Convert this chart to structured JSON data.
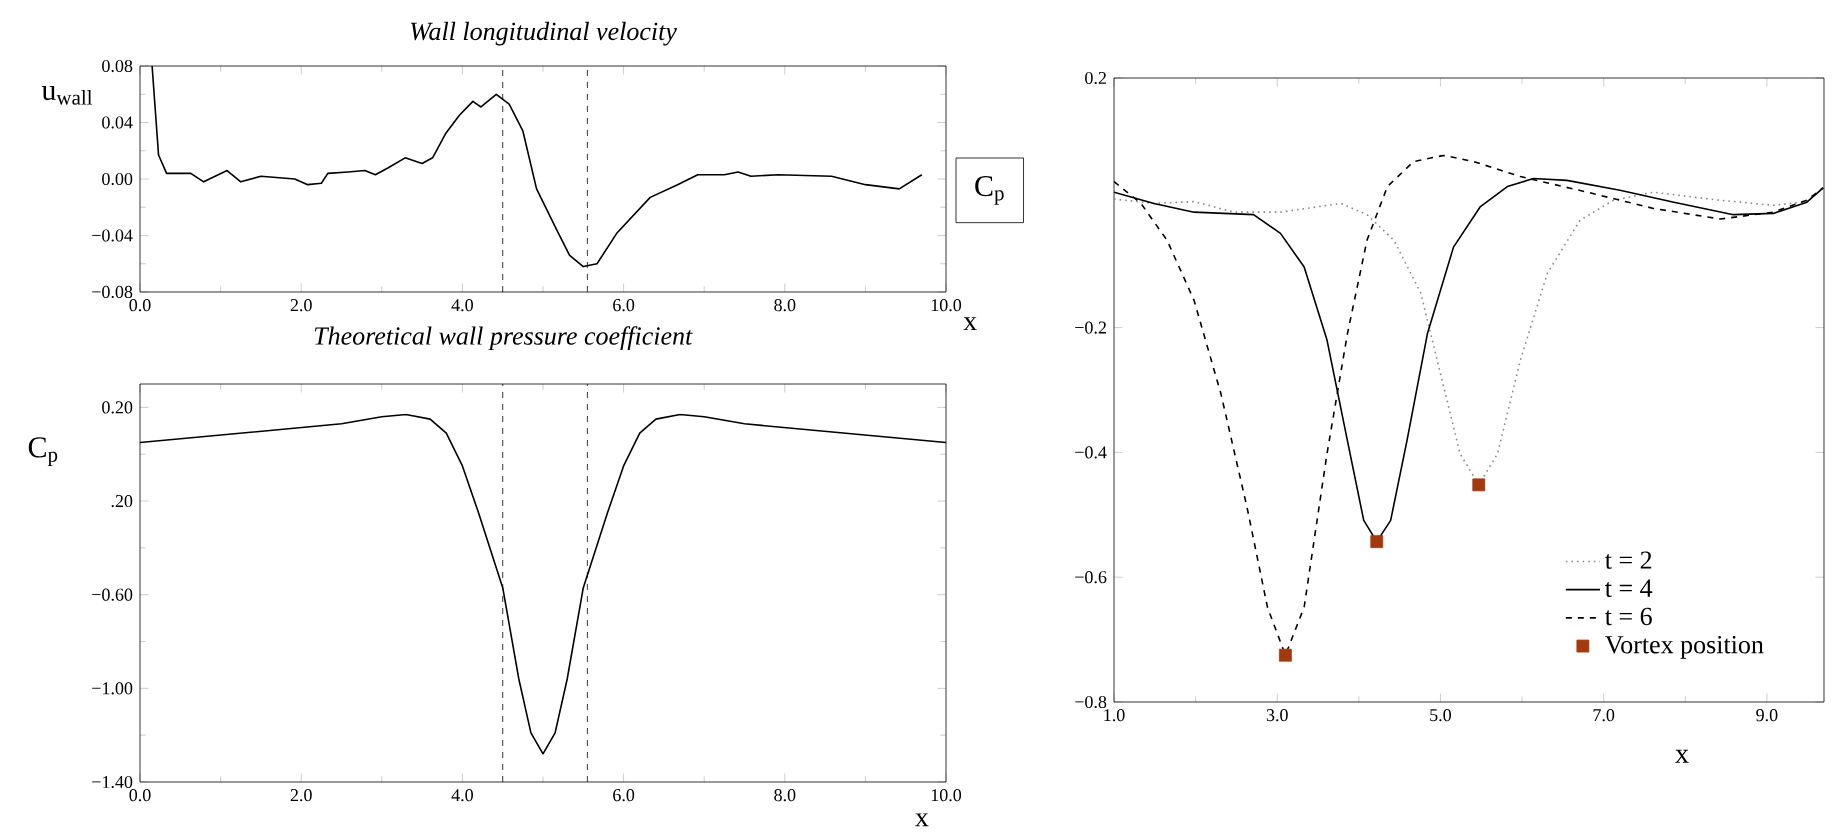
{
  "chart_data": [
    {
      "type": "line",
      "title": "Wall longitudinal velocity",
      "xlabel": "x",
      "ylabel": "u$_{wall}$",
      "color": "#000000",
      "line_style": "solid",
      "x": [
        0.15,
        0.23,
        0.33,
        0.63,
        0.79,
        1.08,
        1.25,
        1.5,
        1.92,
        2.08,
        2.25,
        2.33,
        2.58,
        2.79,
        2.92,
        3.08,
        3.29,
        3.5,
        3.63,
        3.79,
        3.96,
        4.13,
        4.23,
        4.42,
        4.58,
        4.75,
        4.92,
        5.17,
        5.33,
        5.5,
        5.67,
        5.92,
        6.33,
        6.67,
        6.92,
        7.25,
        7.42,
        7.58,
        7.92,
        8.58,
        9.0,
        9.42,
        9.7
      ],
      "values": [
        0.08,
        0.017,
        0.004,
        0.004,
        -0.002,
        0.006,
        -0.002,
        0.002,
        0.0,
        -0.004,
        -0.003,
        0.004,
        0.005,
        0.006,
        0.003,
        0.008,
        0.015,
        0.011,
        0.015,
        0.032,
        0.045,
        0.055,
        0.051,
        0.06,
        0.053,
        0.034,
        -0.007,
        -0.036,
        -0.054,
        -0.062,
        -0.06,
        -0.038,
        -0.013,
        -0.004,
        0.003,
        0.003,
        0.005,
        0.002,
        0.003,
        0.002,
        -0.004,
        -0.007,
        0.003
      ],
      "xlim": [
        0,
        10
      ],
      "ylim": [
        -0.08,
        0.08
      ],
      "xticks": [
        {
          "value": 0,
          "label": "0.0"
        },
        {
          "value": 2,
          "label": "2.0"
        },
        {
          "value": 4,
          "label": "4.0"
        },
        {
          "value": 6,
          "label": "6.0"
        },
        {
          "value": 8,
          "label": "8.0"
        },
        {
          "value": 10,
          "label": "10.0"
        }
      ],
      "yticks": [
        {
          "value": -0.08,
          "label": "−0.08"
        },
        {
          "value": -0.04,
          "label": "−0.04"
        },
        {
          "value": 0,
          "label": "0.00"
        },
        {
          "value": 0.04,
          "label": "0.04"
        },
        {
          "value": 0.08,
          "label": "0.08"
        }
      ],
      "ref_lines": [
        {
          "axis": "x",
          "value": 4.5,
          "line_style": "dashed",
          "color": "#000000"
        },
        {
          "axis": "x",
          "value": 5.55,
          "line_style": "dashed",
          "color": "#000000"
        }
      ]
    },
    {
      "type": "line",
      "title": "Theoretical wall pressure coefficient",
      "xlabel": "x",
      "ylabel": "C$_{p}$",
      "color": "#000000",
      "line_style": "solid",
      "x": [
        0,
        2.5,
        3.0,
        3.3,
        3.6,
        3.8,
        4.0,
        4.2,
        4.5,
        4.7,
        4.85,
        5.0,
        5.15,
        5.3,
        5.5,
        5.8,
        6.0,
        6.2,
        6.4,
        6.7,
        7.0,
        7.5,
        10.0
      ],
      "values": [
        0.05,
        0.13,
        0.16,
        0.17,
        0.15,
        0.09,
        -0.05,
        -0.25,
        -0.57,
        -0.96,
        -1.19,
        -1.28,
        -1.19,
        -0.96,
        -0.57,
        -0.25,
        -0.05,
        0.09,
        0.15,
        0.17,
        0.16,
        0.13,
        0.05
      ],
      "xlim": [
        0,
        10
      ],
      "ylim": [
        -1.4,
        0.3
      ],
      "xticks": [
        {
          "value": 0,
          "label": "0.0"
        },
        {
          "value": 2,
          "label": "2.0"
        },
        {
          "value": 4,
          "label": "4.0"
        },
        {
          "value": 6,
          "label": "6.0"
        },
        {
          "value": 8,
          "label": "8.0"
        },
        {
          "value": 10,
          "label": "10.0"
        }
      ],
      "yticks": [
        {
          "value": -1.4,
          "label": "−1.40"
        },
        {
          "value": -1.0,
          "label": "−1.00"
        },
        {
          "value": -0.6,
          "label": "−0.60"
        },
        {
          "value": -0.2,
          "label": ".20"
        },
        {
          "value": 0.2,
          "label": "0.20"
        }
      ],
      "ref_lines": [
        {
          "axis": "x",
          "value": 4.5,
          "line_style": "dashed",
          "color": "#000000"
        },
        {
          "axis": "x",
          "value": 5.55,
          "line_style": "dashed",
          "color": "#000000"
        }
      ]
    },
    {
      "type": "line",
      "xlabel": "x",
      "ylabel": "C$_{p}$",
      "legend": "bottom right",
      "xlim": [
        1.0,
        9.7
      ],
      "ylim": [
        -0.8,
        0.2
      ],
      "xticks": [
        {
          "value": 1,
          "label": "1.0"
        },
        {
          "value": 3,
          "label": "3.0"
        },
        {
          "value": 5,
          "label": "5.0"
        },
        {
          "value": 7,
          "label": "7.0"
        },
        {
          "value": 9,
          "label": "9.0"
        }
      ],
      "yticks": [
        {
          "value": -0.8,
          "label": "−0.8"
        },
        {
          "value": -0.6,
          "label": "−0.6"
        },
        {
          "value": -0.4,
          "label": "−0.4"
        },
        {
          "value": -0.2,
          "label": "−0.2"
        },
        0.2
      ],
      "series": [
        {
          "name": "t = 2",
          "type": "line",
          "color": "#888888",
          "line_style": "dotted",
          "x": [
            1.0,
            1.49,
            1.98,
            2.47,
            3.04,
            3.78,
            4.1,
            4.43,
            4.76,
            5.0,
            5.24,
            5.47,
            5.7,
            5.98,
            6.31,
            6.71,
            7.12,
            7.61,
            8.43,
            9.08,
            9.49,
            9.69
          ],
          "values": [
            0.006,
            -0.001,
            0.002,
            -0.015,
            -0.015,
            -0.001,
            -0.019,
            -0.06,
            -0.145,
            -0.274,
            -0.402,
            -0.452,
            -0.402,
            -0.252,
            -0.113,
            -0.028,
            0.004,
            0.017,
            0.004,
            -0.004,
            0.002,
            0.024
          ]
        },
        {
          "name": "t = 4",
          "type": "line",
          "color": "#000000",
          "line_style": "solid",
          "x": [
            1.0,
            1.49,
            1.98,
            2.71,
            3.04,
            3.33,
            3.61,
            3.86,
            4.06,
            4.22,
            4.39,
            4.59,
            4.84,
            5.16,
            5.49,
            5.82,
            6.14,
            6.55,
            7.2,
            7.86,
            8.59,
            9.08,
            9.49,
            9.69
          ],
          "values": [
            0.017,
            -0.001,
            -0.015,
            -0.019,
            -0.049,
            -0.103,
            -0.22,
            -0.381,
            -0.509,
            -0.543,
            -0.509,
            -0.381,
            -0.21,
            -0.071,
            -0.006,
            0.026,
            0.039,
            0.036,
            0.02,
            0.001,
            -0.019,
            -0.017,
            0.001,
            0.024
          ]
        },
        {
          "name": "t = 6",
          "type": "line",
          "color": "#000000",
          "line_style": "dashed",
          "x": [
            1.0,
            1.33,
            1.65,
            1.98,
            2.31,
            2.63,
            2.88,
            3.1,
            3.33,
            3.61,
            3.86,
            4.1,
            4.35,
            4.67,
            5.04,
            5.41,
            5.98,
            6.8,
            7.61,
            8.43,
            9.08,
            9.49,
            9.69
          ],
          "values": [
            0.034,
            -0.001,
            -0.06,
            -0.156,
            -0.306,
            -0.488,
            -0.648,
            -0.725,
            -0.648,
            -0.402,
            -0.21,
            -0.06,
            0.026,
            0.066,
            0.076,
            0.066,
            0.042,
            0.017,
            -0.009,
            -0.026,
            -0.015,
            0.004,
            0.024
          ]
        },
        {
          "name": "Vortex position",
          "type": "scatter",
          "marker": "square",
          "color": "#a33a0f",
          "x": [
            3.1,
            4.22,
            5.47
          ],
          "values": [
            -0.725,
            -0.543,
            -0.452
          ]
        }
      ]
    }
  ]
}
